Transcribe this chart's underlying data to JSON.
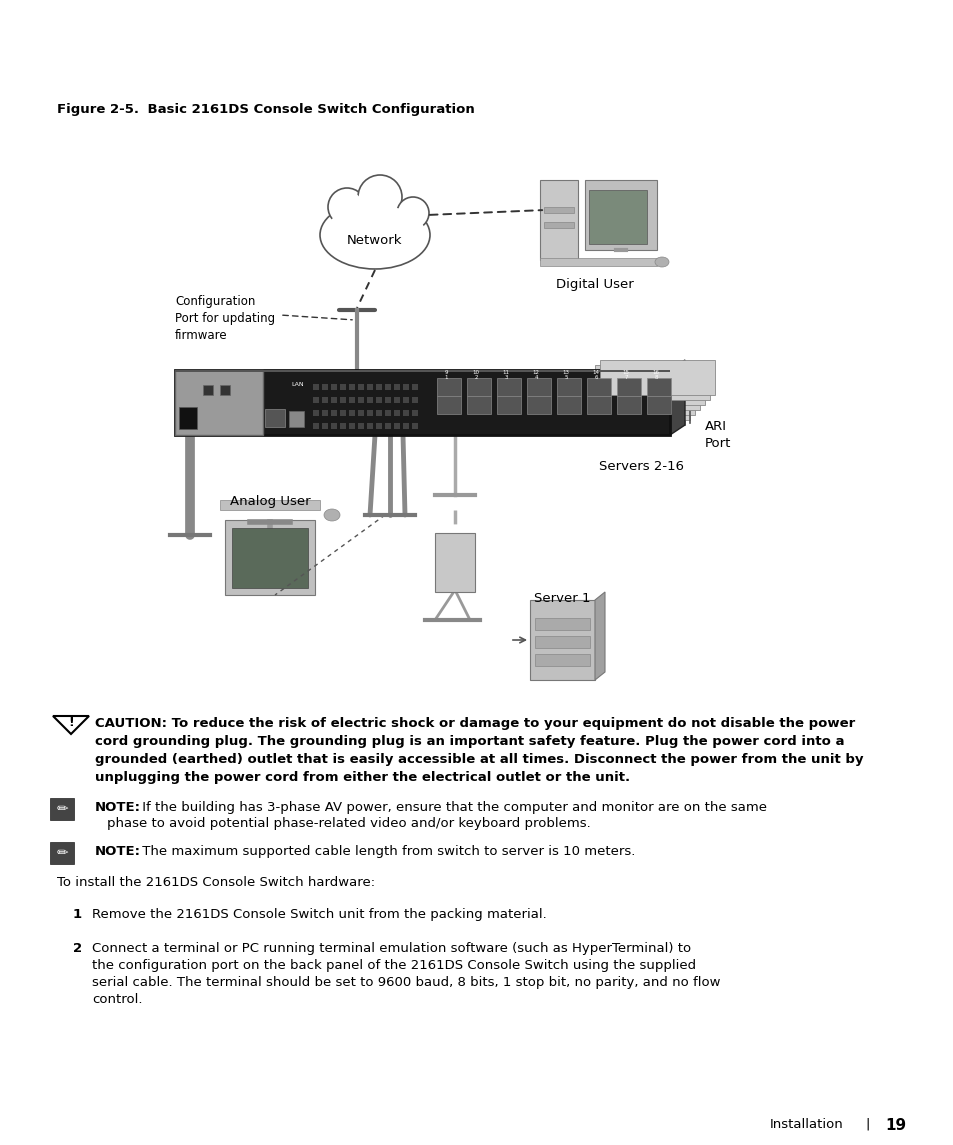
{
  "figure_label": "Figure 2-5.",
  "figure_title": "    Basic 2161DS Console Switch Configuration",
  "caution_text_line1": "CAUTION: To reduce the risk of electric shock or damage to your equipment do not disable the power",
  "caution_text_line2": "cord grounding plug. The grounding plug is an important safety feature. Plug the power cord into a",
  "caution_text_line3": "grounded (earthed) outlet that is easily accessible at all times. Disconnect the power from the unit by",
  "caution_text_line4": "unplugging the power cord from either the electrical outlet or the unit.",
  "note1_text": "NOTE: If the building has 3-phase AV power, ensure that the computer and monitor are on the same\nphase to avoid potential phase-related video and/or keyboard problems.",
  "note2_text": "NOTE: The maximum supported cable length from switch to server is 10 meters.",
  "intro_text": "To install the 2161DS Console Switch hardware:",
  "step1_num": "1",
  "step1_text": "Remove the 2161DS Console Switch unit from the packing material.",
  "step2_num": "2",
  "step2_line1": "Connect a terminal or PC running terminal emulation software (such as HyperTerminal) to",
  "step2_line2": "the configuration port on the back panel of the 2161DS Console Switch using the supplied",
  "step2_line3": "serial cable. The terminal should be set to 9600 baud, 8 bits, 1 stop bit, no parity, and no flow",
  "step2_line4": "control.",
  "footer_text": "Installation",
  "footer_sep": "|",
  "footer_page": "19",
  "bg_color": "#ffffff",
  "text_color": "#000000",
  "network_label": "Network",
  "digital_user_label": "Digital User",
  "config_port_label": "Configuration\nPort for updating\nfirmware",
  "analog_user_label": "Analog User",
  "servers_label": "Servers 2-16",
  "ari_port_label": "ARI\nPort",
  "server1_label": "Server 1"
}
